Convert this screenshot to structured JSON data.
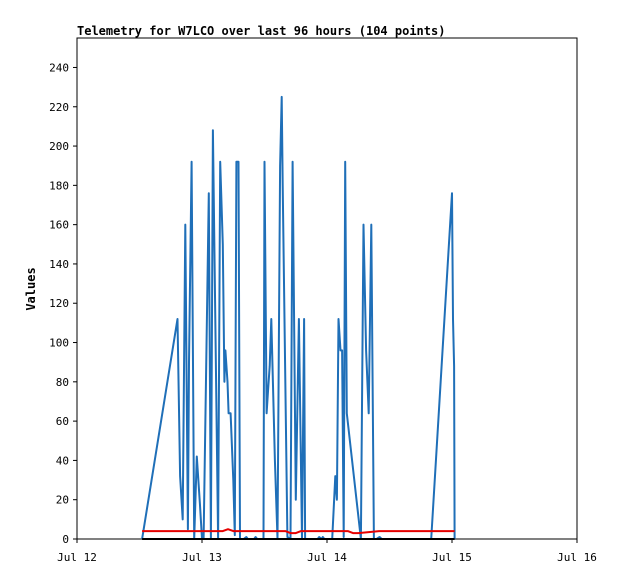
{
  "chart_data": {
    "type": "line",
    "title": "Telemetry for W7LCO over last 96 hours (104 points)",
    "xlabel": "",
    "ylabel": "Values",
    "x_unit": "hours_from_Jul_12",
    "xlim": [
      0,
      96
    ],
    "ylim": [
      0,
      255
    ],
    "y_ticks": [
      0,
      20,
      40,
      60,
      80,
      100,
      120,
      140,
      160,
      180,
      200,
      220,
      240
    ],
    "x_ticks": [
      {
        "value": 0,
        "label": "Jul 12"
      },
      {
        "value": 24,
        "label": "Jul 13"
      },
      {
        "value": 48,
        "label": "Jul 14"
      },
      {
        "value": 72,
        "label": "Jul 15"
      },
      {
        "value": 96,
        "label": "Jul 16"
      }
    ],
    "grid": false,
    "legend": "none",
    "series": [
      {
        "color": "#1f6fb8",
        "x": [
          12.5,
          19.3,
          19.8,
          20.3,
          20.8,
          21.3,
          21.5,
          22.0,
          22.5,
          23.0,
          23.6,
          24.0,
          24.3,
          25.3,
          25.7,
          26.1,
          27.1,
          27.5,
          28.0,
          28.3,
          28.5,
          28.9,
          29.1,
          29.5,
          30.0,
          30.3,
          30.6,
          31.0,
          31.3,
          32.0,
          32.5,
          32.8,
          33.0,
          33.3,
          34.0,
          34.3,
          34.6,
          35.0,
          35.8,
          36.0,
          36.4,
          36.7,
          37.0,
          37.3,
          38.0,
          38.5,
          39.0,
          39.3,
          39.5,
          40.4,
          41.0,
          41.4,
          42.0,
          42.6,
          43.2,
          43.6,
          43.8,
          45.0,
          45.4,
          45.6,
          46.0,
          46.2,
          46.5,
          47.0,
          47.2,
          47.5,
          48.0,
          48.3,
          48.6,
          49.0,
          49.6,
          49.9,
          50.2,
          50.6,
          50.9,
          51.2,
          51.5,
          51.8,
          54.5,
          55.0,
          55.5,
          56.0,
          56.5,
          57.0,
          57.5,
          58.1,
          58.5,
          59.1,
          59.6,
          60.0,
          60.5,
          61.0,
          61.5,
          61.8,
          62.0,
          62.3,
          62.7,
          65.3,
          66.0,
          68.0,
          72.0,
          72.2,
          72.4,
          72.5
        ],
        "values": [
          0,
          112,
          32,
          10,
          160,
          5,
          90,
          192,
          0,
          42,
          18,
          0,
          0,
          176,
          0,
          208,
          0,
          192,
          150,
          80,
          96,
          80,
          64,
          64,
          30,
          2,
          192,
          192,
          0,
          0,
          1,
          0,
          0,
          0,
          0,
          1,
          0,
          0,
          0,
          192,
          64,
          76,
          88,
          112,
          40,
          0,
          190,
          225,
          180,
          1,
          0,
          192,
          20,
          112,
          0,
          112,
          0,
          0,
          0,
          0,
          0,
          0,
          1,
          0,
          1,
          0,
          0,
          0,
          0,
          0,
          32,
          20,
          112,
          96,
          96,
          1,
          192,
          64,
          0,
          160,
          96,
          64,
          160,
          0,
          0,
          1,
          0,
          0,
          0,
          0,
          0,
          0,
          0,
          0,
          0,
          0,
          0,
          0,
          0,
          0,
          176,
          112,
          88,
          0
        ]
      },
      {
        "color": "#e60000",
        "x": [
          12.5,
          20.0,
          28.0,
          29.0,
          30.0,
          40.0,
          41.0,
          42.0,
          43.0,
          52.0,
          53.0,
          54.0,
          58.0,
          59.0,
          72.5
        ],
        "values": [
          4,
          4,
          4,
          5,
          4,
          4,
          3,
          3,
          4,
          4,
          3,
          3,
          4,
          4,
          4
        ]
      },
      {
        "color": "#000000",
        "x": [
          12.5,
          72.5
        ],
        "values": [
          0,
          0
        ]
      }
    ]
  }
}
